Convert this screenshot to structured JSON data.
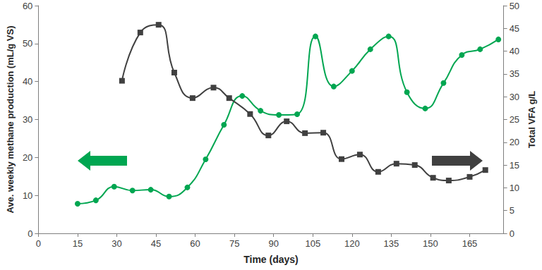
{
  "chart_data": {
    "type": "line",
    "x_label": "Time (days)",
    "y_label": "Ave. weekly methane production (mL/g VS)",
    "y2_label": "Total VFA g/L",
    "xlim": [
      0,
      178
    ],
    "xticks": [
      0,
      15,
      30,
      45,
      60,
      75,
      90,
      105,
      120,
      135,
      150,
      165
    ],
    "ylim": [
      0,
      60
    ],
    "yticks": [
      0,
      10,
      20,
      30,
      40,
      50,
      60
    ],
    "y2lim": [
      0,
      50
    ],
    "y2ticks": [
      0,
      5,
      10,
      15,
      20,
      25,
      30,
      35,
      40,
      45,
      50
    ],
    "grid": false,
    "series": [
      {
        "color": "#00a651",
        "marker": "circle",
        "line_style": "solid",
        "axis": "y",
        "x": [
          15,
          22,
          29,
          36,
          43,
          50,
          57,
          64,
          71,
          78,
          85,
          92,
          99,
          106,
          113,
          120,
          127,
          134,
          141,
          148,
          155,
          162,
          169,
          176
        ],
        "values": [
          7.8,
          8.7,
          12.3,
          11.3,
          11.5,
          9.7,
          12.1,
          19.5,
          28.6,
          36.2,
          32.3,
          31.2,
          31.4,
          51.9,
          38.7,
          42.8,
          48.5,
          51.9,
          37.2,
          32.9,
          39.6,
          47.0,
          48.5,
          51.1
        ]
      },
      {
        "color": "#404040",
        "marker": "square",
        "line_style": "solid",
        "axis": "y2",
        "x": [
          32,
          39,
          46,
          52,
          59,
          67,
          73,
          81,
          88,
          95,
          102,
          109,
          116,
          123,
          130,
          137,
          144,
          151,
          157,
          165,
          171
        ],
        "values": [
          33.5,
          44.1,
          45.8,
          35.3,
          29.7,
          32.0,
          29.7,
          26.2,
          21.5,
          24.6,
          22.0,
          22.1,
          16.3,
          17.3,
          13.5,
          15.3,
          15.0,
          12.2,
          11.6,
          12.4,
          13.9
        ]
      }
    ]
  }
}
